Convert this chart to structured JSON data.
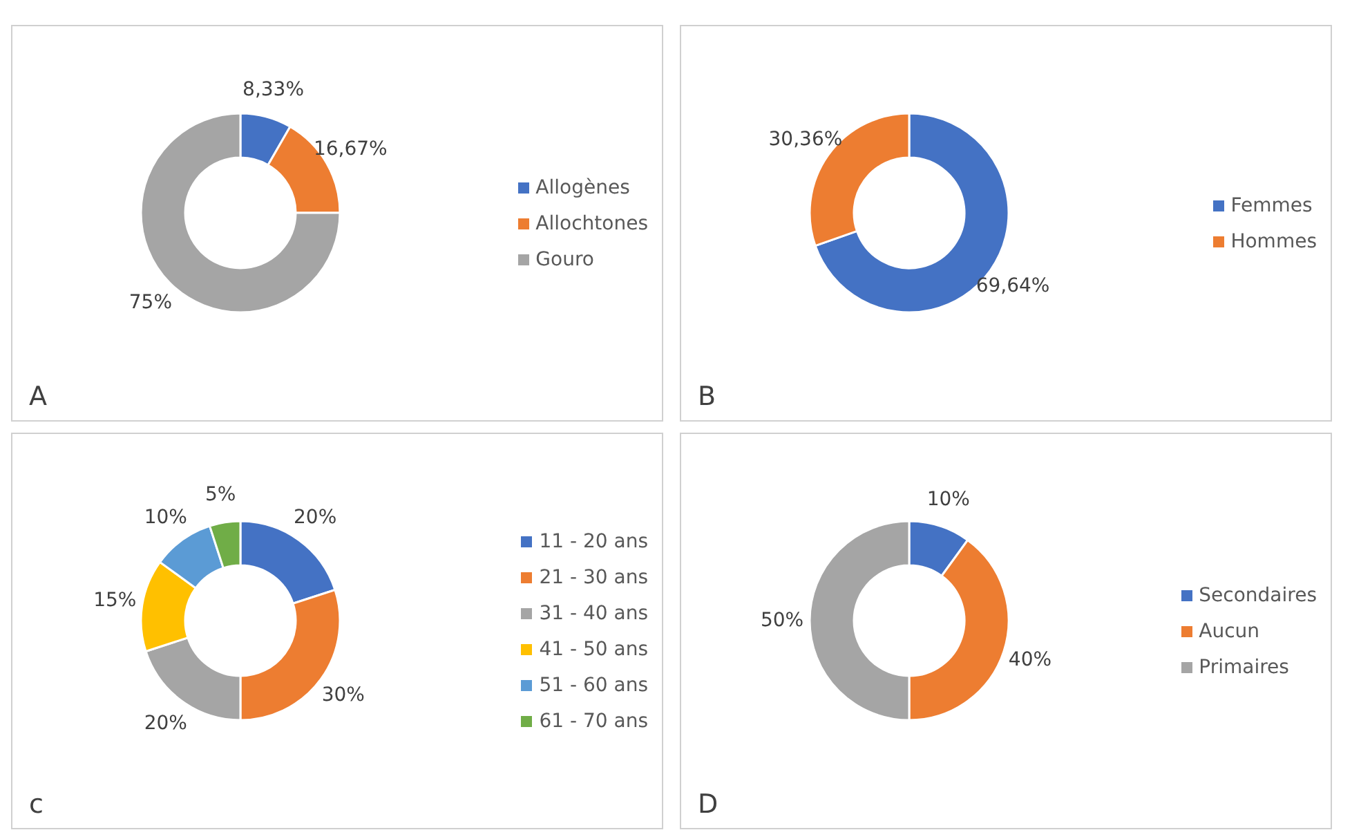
{
  "chart_data": [
    {
      "type": "donut",
      "categories": [
        "Allogènes",
        "Allochtones",
        "Gouro"
      ],
      "values": [
        8.33,
        16.67,
        75
      ],
      "colors": [
        "#4472c4",
        "#ed7d31",
        "#a5a5a5"
      ],
      "value_labels": [
        "8,33%",
        "16,67%",
        "75%"
      ],
      "legend": "right",
      "annotations": [
        "A"
      ]
    },
    {
      "type": "donut",
      "categories": [
        "Femmes",
        "Hommes"
      ],
      "values": [
        69.64,
        30.36
      ],
      "colors": [
        "#4472c4",
        "#ed7d31"
      ],
      "value_labels": [
        "69,64%",
        "30,36%"
      ],
      "legend": "right",
      "annotations": [
        "B"
      ]
    },
    {
      "type": "donut",
      "categories": [
        "11 - 20 ans",
        "21 - 30 ans",
        "31 - 40 ans",
        "41 - 50 ans",
        "51 - 60 ans",
        "61 - 70 ans"
      ],
      "values": [
        20,
        30,
        20,
        15,
        10,
        5
      ],
      "colors": [
        "#4472c4",
        "#ed7d31",
        "#a5a5a5",
        "#ffc000",
        "#5b9bd5",
        "#70ad47"
      ],
      "value_labels": [
        "20%",
        "30%",
        "20%",
        "15%",
        "10%",
        "5%"
      ],
      "legend": "right",
      "annotations": [
        "c"
      ]
    },
    {
      "type": "donut",
      "categories": [
        "Secondaires",
        "Aucun",
        "Primaires"
      ],
      "values": [
        10,
        40,
        50
      ],
      "colors": [
        "#4472c4",
        "#ed7d31",
        "#a5a5a5"
      ],
      "value_labels": [
        "10%",
        "40%",
        "50%"
      ],
      "legend": "right",
      "annotations": [
        "D"
      ]
    }
  ]
}
